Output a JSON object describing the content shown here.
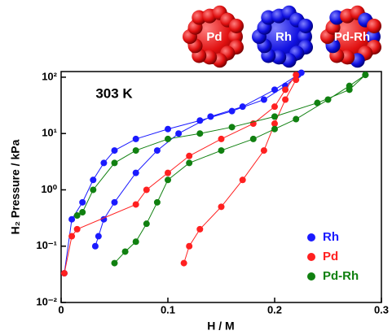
{
  "chart_data": {
    "type": "scatter-line",
    "annotation": "303 K",
    "cluster_labels": [
      "Pd",
      "Rh",
      "Pd-Rh"
    ],
    "xlabel": "H / M",
    "ylabel": "H₂ Pressure / kPa",
    "xlim": [
      0,
      0.3
    ],
    "xticks": [
      0,
      0.1,
      0.2,
      0.3
    ],
    "ylim": [
      0.01,
      126
    ],
    "log_y": true,
    "yticks": [
      {
        "value": 0.01,
        "label": "10⁻²"
      },
      {
        "value": 0.1,
        "label": "10⁻¹"
      },
      {
        "value": 1,
        "label": "10⁰"
      },
      {
        "value": 10,
        "label": "10¹"
      },
      {
        "value": 100,
        "label": "10²"
      }
    ],
    "legend": "lower right",
    "series": [
      {
        "name": "Rh",
        "color": "#1a1aff",
        "x": [
          0.003,
          0.01,
          0.02,
          0.03,
          0.04,
          0.05,
          0.07,
          0.1,
          0.13,
          0.16,
          0.19,
          0.21,
          0.222,
          null,
          0.225,
          0.2,
          0.17,
          0.14,
          0.11,
          0.09,
          0.07,
          0.05,
          0.04,
          0.035,
          0.032
        ],
        "values": [
          0.033,
          0.3,
          0.6,
          1.5,
          3,
          5,
          8,
          12,
          17,
          25,
          40,
          70,
          110,
          null,
          120,
          60,
          30,
          20,
          10,
          5,
          2,
          0.6,
          0.3,
          0.15,
          0.1
        ]
      },
      {
        "name": "Pd",
        "color": "#ff2020",
        "x": [
          0.003,
          0.01,
          0.015,
          0.07,
          0.08,
          0.1,
          0.12,
          0.15,
          0.18,
          0.2,
          0.21,
          0.22,
          null,
          0.115,
          0.12,
          0.13,
          0.15,
          0.17,
          0.19,
          0.2,
          0.21,
          0.22
        ],
        "values": [
          0.033,
          0.15,
          0.2,
          0.55,
          1,
          2,
          4,
          8,
          15,
          30,
          60,
          110,
          null,
          0.05,
          0.1,
          0.2,
          0.5,
          1.5,
          5,
          15,
          40,
          90
        ]
      },
      {
        "name": "Pd-Rh",
        "color": "#108010",
        "x": [
          0.015,
          0.02,
          0.03,
          0.05,
          0.07,
          0.1,
          0.13,
          0.16,
          0.2,
          0.24,
          0.27,
          0.285,
          null,
          0.05,
          0.06,
          0.07,
          0.08,
          0.09,
          0.1,
          0.12,
          0.15,
          0.18,
          0.2,
          0.22,
          0.25,
          0.27,
          0.285
        ],
        "values": [
          0.35,
          0.4,
          1,
          3,
          5,
          8,
          10,
          13,
          20,
          35,
          60,
          110,
          null,
          0.05,
          0.08,
          0.12,
          0.25,
          0.6,
          1.5,
          3,
          5,
          8,
          12,
          18,
          40,
          70,
          110
        ]
      }
    ]
  }
}
